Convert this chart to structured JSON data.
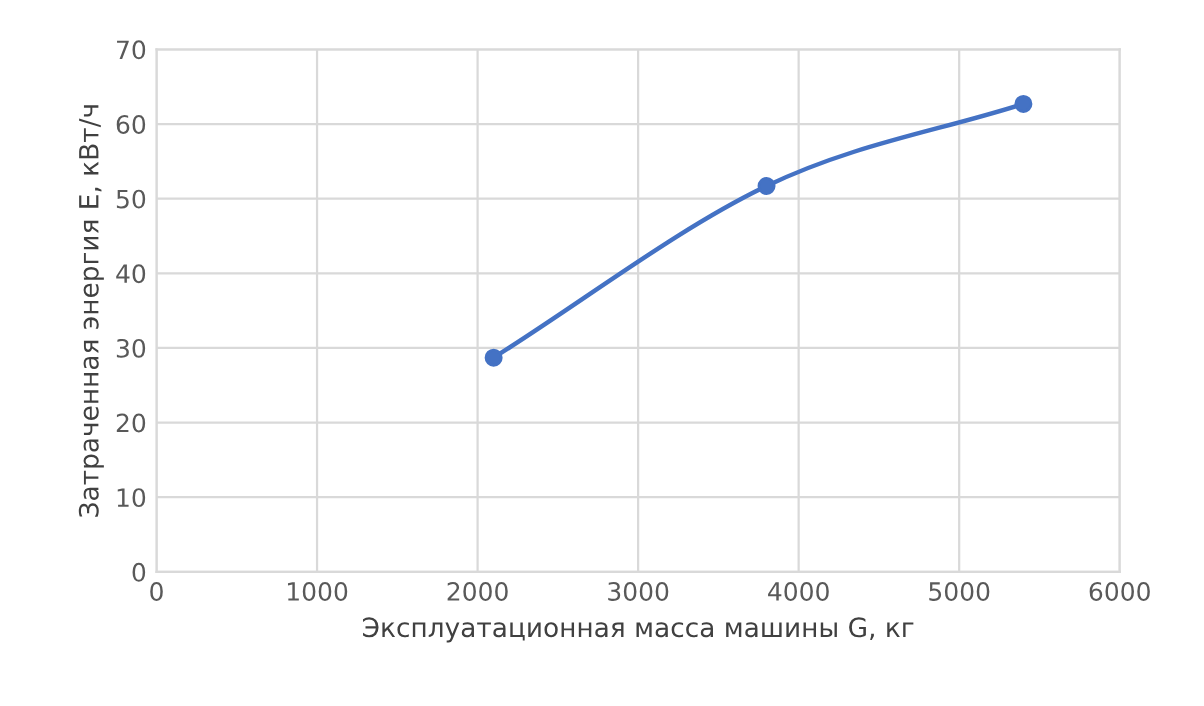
{
  "chart_data": {
    "type": "line",
    "xlabel": "Эксплуатационная масса машины G, кг",
    "ylabel": "Затраченная энергия E, кВт/ч",
    "x": [
      2100,
      3800,
      5400
    ],
    "series": [
      {
        "color": "#4472c4",
        "values": [
          28.7,
          51.7,
          62.7
        ]
      }
    ],
    "xlim": [
      0,
      6000
    ],
    "xticks": [
      0,
      1000,
      2000,
      3000,
      4000,
      5000,
      6000
    ],
    "ylim": [
      0,
      70
    ],
    "yticks": [
      0,
      10,
      20,
      30,
      40,
      50,
      60,
      70
    ],
    "grid": true,
    "marker": "circle",
    "line_style": "solid"
  }
}
